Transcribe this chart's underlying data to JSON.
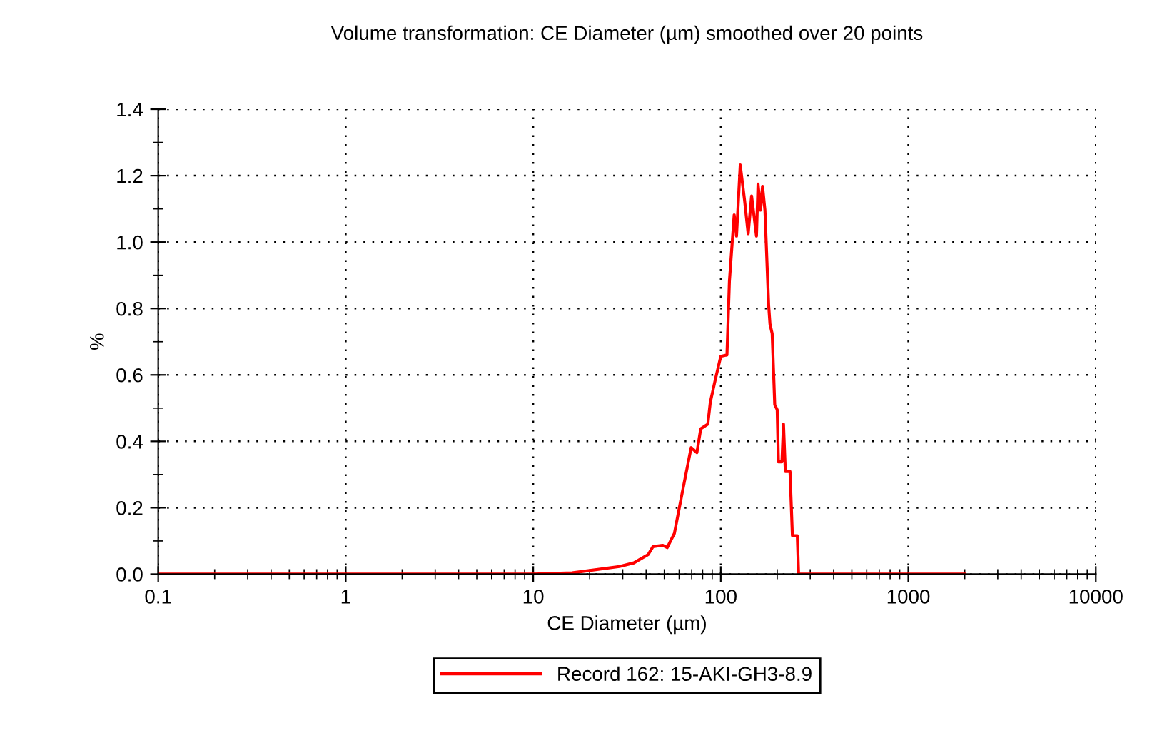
{
  "chart_data": {
    "type": "line",
    "title": "Volume transformation: CE Diameter (µm) smoothed over 20 points",
    "xlabel": "CE Diameter (µm)",
    "ylabel": "%",
    "log": "x",
    "xlim": [
      0.1,
      10000
    ],
    "xticks": [
      0.1,
      1,
      10,
      100,
      1000,
      10000
    ],
    "ylim": [
      0,
      1.4
    ],
    "yticks": [
      {
        "value": 0,
        "label": "0.0"
      },
      0.2,
      0.4,
      0.6,
      0.8,
      {
        "value": 1,
        "label": "1.0"
      },
      1.2,
      1.4
    ],
    "grid": true,
    "legend": "bottom",
    "marker": "none",
    "line_style": "solid",
    "series": [
      {
        "name": "Record 162: 15-AKI-GH3-8.9",
        "color": "#ff0000",
        "x": [
          0.1,
          10,
          16.1,
          28.8,
          34.4,
          41.0,
          43.5,
          48.9,
          51.8,
          56.6,
          61.9,
          69.5,
          74.6,
          78.2,
          85.3,
          87.9,
          93.1,
          100,
          107.9,
          111.2,
          117.9,
          121.3,
          127,
          134,
          140,
          146,
          155,
          158,
          163,
          167,
          172,
          180,
          183,
          188,
          194,
          200,
          203,
          212,
          216,
          221,
          234,
          241,
          256,
          260,
          2000
        ],
        "values": [
          0,
          0,
          0.004,
          0.023,
          0.034,
          0.059,
          0.083,
          0.087,
          0.08,
          0.123,
          0.237,
          0.381,
          0.366,
          0.438,
          0.452,
          0.517,
          0.581,
          0.656,
          0.66,
          0.882,
          1.082,
          1.018,
          1.232,
          1.125,
          1.025,
          1.139,
          1.018,
          1.175,
          1.096,
          1.168,
          1.096,
          0.81,
          0.753,
          0.724,
          0.51,
          0.495,
          0.338,
          0.338,
          0.452,
          0.309,
          0.309,
          0.116,
          0.116,
          0,
          0
        ]
      }
    ]
  }
}
